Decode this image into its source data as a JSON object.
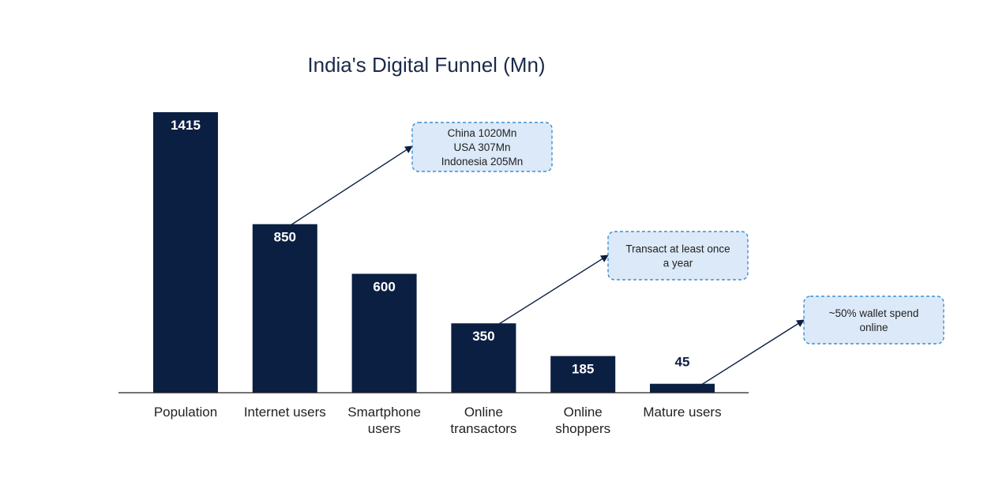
{
  "chart_data": {
    "type": "bar",
    "title": "India's Digital Funnel (Mn)",
    "xlabel": "",
    "ylabel": "",
    "categories": [
      [
        "Population"
      ],
      [
        "Internet users"
      ],
      [
        "Smartphone",
        "users"
      ],
      [
        "Online",
        "transactors"
      ],
      [
        "Online",
        "shoppers"
      ],
      [
        "Mature users"
      ]
    ],
    "values": [
      1415,
      850,
      600,
      350,
      185,
      45
    ],
    "value_labels": [
      "1415",
      "850",
      "600",
      "350",
      "185",
      "45"
    ],
    "ylim": [
      0,
      1415
    ],
    "grid": false,
    "legend": "none",
    "annotations": [
      {
        "bar_index": 1,
        "lines": [
          "China 1020Mn",
          "USA 307Mn",
          "Indonesia 205Mn"
        ]
      },
      {
        "bar_index": 3,
        "lines": [
          "Transact at least once",
          "a year"
        ]
      },
      {
        "bar_index": 5,
        "lines": [
          "~50% wallet spend",
          "online"
        ]
      }
    ]
  },
  "colors": {
    "bar": "#0b1f42",
    "bar_label_inside": "#ffffff",
    "bar_label_outside": "#0b1f42",
    "callout_fill": "#dce9f8",
    "callout_border": "#3d8fd1",
    "arrow": "#0b1f42",
    "axis": "#222222"
  }
}
